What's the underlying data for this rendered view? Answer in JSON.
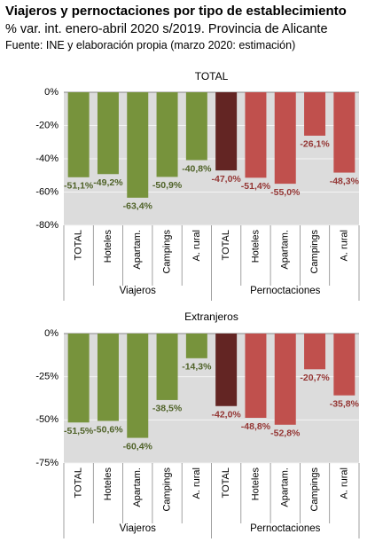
{
  "title": "Viajeros y pernoctaciones por tipo de establecimiento",
  "subtitle": "% var. int. enero-abril 2020 s/2019. Provincia de Alicante",
  "source": "Fuente: INE y elaboración propia (marzo 2020: estimación)",
  "chart_data": [
    {
      "type": "bar",
      "title": "TOTAL",
      "categories": [
        "TOTAL",
        "Hoteles",
        "Apartam.",
        "Campings",
        "A. rural"
      ],
      "series": [
        {
          "name": "Viajeros",
          "colors": [
            "#77933c",
            "#77933c",
            "#77933c",
            "#77933c",
            "#77933c"
          ],
          "label_color": "#4f6228",
          "values": [
            -51.1,
            -49.2,
            -63.4,
            -50.9,
            -40.8
          ],
          "value_labels": [
            "-51,1%",
            "-49,2%",
            "-63,4%",
            "-50,9%",
            "-40,8%"
          ]
        },
        {
          "name": "Pernoctaciones",
          "colors": [
            "#632523",
            "#c0504d",
            "#c0504d",
            "#c0504d",
            "#c0504d"
          ],
          "label_color": "#943634",
          "values": [
            -47.0,
            -51.4,
            -55.0,
            -26.1,
            -48.3
          ],
          "value_labels": [
            "-47,0%",
            "-51,4%",
            "-55,0%",
            "-26,1%",
            "-48,3%"
          ]
        }
      ],
      "ylim": [
        -80,
        0
      ],
      "yticks": [
        {
          "value": 0,
          "label": "0%"
        },
        {
          "value": -20,
          "label": "-20%"
        },
        {
          "value": -40,
          "label": "-40%"
        },
        {
          "value": -60,
          "label": "-60%"
        },
        {
          "value": -80,
          "label": "-80%"
        }
      ],
      "grid": true
    },
    {
      "type": "bar",
      "title": "Extranjeros",
      "categories": [
        "TOTAL",
        "Hoteles",
        "Apartam.",
        "Campings",
        "A. rural"
      ],
      "series": [
        {
          "name": "Viajeros",
          "colors": [
            "#77933c",
            "#77933c",
            "#77933c",
            "#77933c",
            "#77933c"
          ],
          "label_color": "#4f6228",
          "values": [
            -51.5,
            -50.6,
            -60.4,
            -38.5,
            -14.3
          ],
          "value_labels": [
            "-51,5%",
            "-50,6%",
            "-60,4%",
            "-38,5%",
            "-14,3%"
          ]
        },
        {
          "name": "Pernoctaciones",
          "colors": [
            "#632523",
            "#c0504d",
            "#c0504d",
            "#c0504d",
            "#c0504d"
          ],
          "label_color": "#943634",
          "values": [
            -42.0,
            -48.8,
            -52.8,
            -20.7,
            -35.8
          ],
          "value_labels": [
            "-42,0%",
            "-48,8%",
            "-52,8%",
            "-20,7%",
            "-35,8%"
          ]
        }
      ],
      "ylim": [
        -75,
        0
      ],
      "yticks": [
        {
          "value": 0,
          "label": "0%"
        },
        {
          "value": -25,
          "label": "-25%"
        },
        {
          "value": -50,
          "label": "-50%"
        },
        {
          "value": -75,
          "label": "-75%"
        }
      ],
      "grid": true
    }
  ]
}
